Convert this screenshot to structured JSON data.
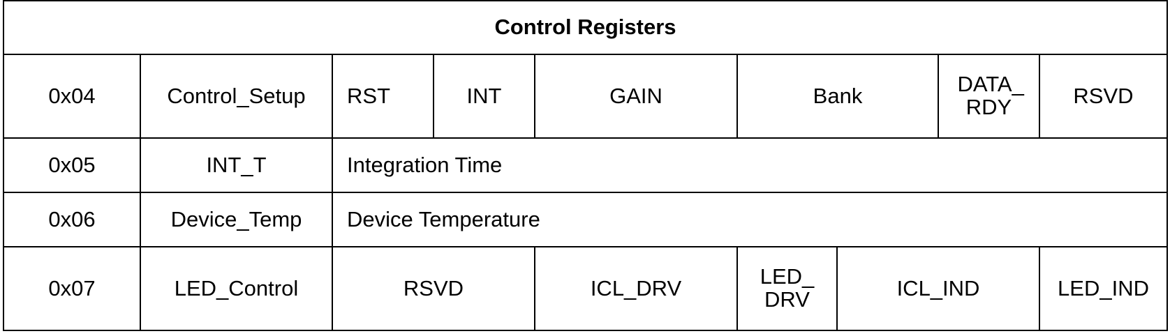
{
  "table": {
    "title": "Control Registers",
    "rows": [
      {
        "address": "0x04",
        "name": "Control_Setup",
        "fields": [
          "RST",
          "INT",
          "GAIN",
          "Bank",
          "DATA_ RDY",
          "RSVD"
        ]
      },
      {
        "address": "0x05",
        "name": "INT_T",
        "fields": [
          "Integration Time"
        ]
      },
      {
        "address": "0x06",
        "name": "Device_Temp",
        "fields": [
          "Device Temperature"
        ]
      },
      {
        "address": "0x07",
        "name": "LED_Control",
        "fields": [
          "RSVD",
          "ICL_DRV",
          "LED_ DRV",
          "ICL_IND",
          "LED_IND"
        ]
      }
    ]
  }
}
